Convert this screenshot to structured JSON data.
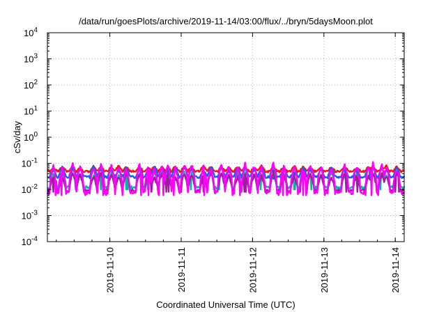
{
  "chart_data": {
    "type": "line",
    "title": "/data/run/goesPlots/archive/2019-11-14/03:00/flux/../bryn/5daysMoon.plot",
    "xlabel": "Coordinated Universal Time (UTC)",
    "ylabel": "cSv/day",
    "yscale": "log",
    "ylim": [
      0.0001,
      10000
    ],
    "y_ticks": [
      {
        "value": 0.0001,
        "mantissa": "10",
        "exp": "-4"
      },
      {
        "value": 0.001,
        "mantissa": "10",
        "exp": "-3"
      },
      {
        "value": 0.01,
        "mantissa": "10",
        "exp": "-2"
      },
      {
        "value": 0.1,
        "mantissa": "10",
        "exp": "-1"
      },
      {
        "value": 1,
        "mantissa": "10",
        "exp": "0"
      },
      {
        "value": 10,
        "mantissa": "10",
        "exp": "1"
      },
      {
        "value": 100,
        "mantissa": "10",
        "exp": "2"
      },
      {
        "value": 1000,
        "mantissa": "10",
        "exp": "3"
      },
      {
        "value": 10000,
        "mantissa": "10",
        "exp": "4"
      }
    ],
    "xlim": [
      "2019-11-09T03:00",
      "2019-11-14T03:00"
    ],
    "x_ticks": [
      {
        "value": "2019-11-10T00:00",
        "label": "2019-11-10"
      },
      {
        "value": "2019-11-11T00:00",
        "label": "2019-11-11"
      },
      {
        "value": "2019-11-12T00:00",
        "label": "2019-11-12"
      },
      {
        "value": "2019-11-13T00:00",
        "label": "2019-11-13"
      },
      {
        "value": "2019-11-14T00:00",
        "label": "2019-11-14"
      }
    ],
    "grid": true,
    "legend": "none",
    "series": [
      {
        "color": "#e41a1c",
        "base": 0.05,
        "base_std": 0.004,
        "spike_peak": 0.08,
        "dip_min": 0.045
      },
      {
        "color": "#1f5fe0",
        "base": 0.03,
        "base_std": 0.003,
        "spike_peak": 0.075,
        "dip_min": 0.025
      },
      {
        "color": "#00b89c",
        "base": 0.012,
        "base_std": 0.0015,
        "spike_peak": 0.05,
        "dip_min": 0.01
      },
      {
        "color": "#9e1ca0",
        "base": 0.009,
        "base_std": 0.001,
        "spike_peak": 0.045,
        "dip_min": 0.008
      },
      {
        "color": "#ff00ff",
        "base": 0.0075,
        "base_std": 0.001,
        "spike_peak": 0.1,
        "dip_min": 0.006
      }
    ],
    "spike_times": [
      "2019-11-09T05:00",
      "2019-11-09T08:00",
      "2019-11-09T11:30",
      "2019-11-09T14:00",
      "2019-11-09T18:30",
      "2019-11-09T21:00",
      "2019-11-10T00:30",
      "2019-11-10T03:00",
      "2019-11-10T05:30",
      "2019-11-10T10:00",
      "2019-11-10T13:00",
      "2019-11-10T15:00",
      "2019-11-10T17:30",
      "2019-11-10T19:30",
      "2019-11-10T22:00",
      "2019-11-11T01:00",
      "2019-11-11T03:30",
      "2019-11-11T07:30",
      "2019-11-11T10:00",
      "2019-11-11T13:30",
      "2019-11-11T16:00",
      "2019-11-11T19:00",
      "2019-11-11T21:30",
      "2019-11-12T00:30",
      "2019-11-12T03:00",
      "2019-11-12T07:00",
      "2019-11-12T10:30",
      "2019-11-12T14:00",
      "2019-11-12T17:00",
      "2019-11-12T19:30",
      "2019-11-12T23:00",
      "2019-11-13T02:30",
      "2019-11-13T07:00",
      "2019-11-13T11:00",
      "2019-11-13T15:00",
      "2019-11-13T16:30",
      "2019-11-13T19:30",
      "2019-11-13T21:00",
      "2019-11-14T00:30"
    ]
  }
}
